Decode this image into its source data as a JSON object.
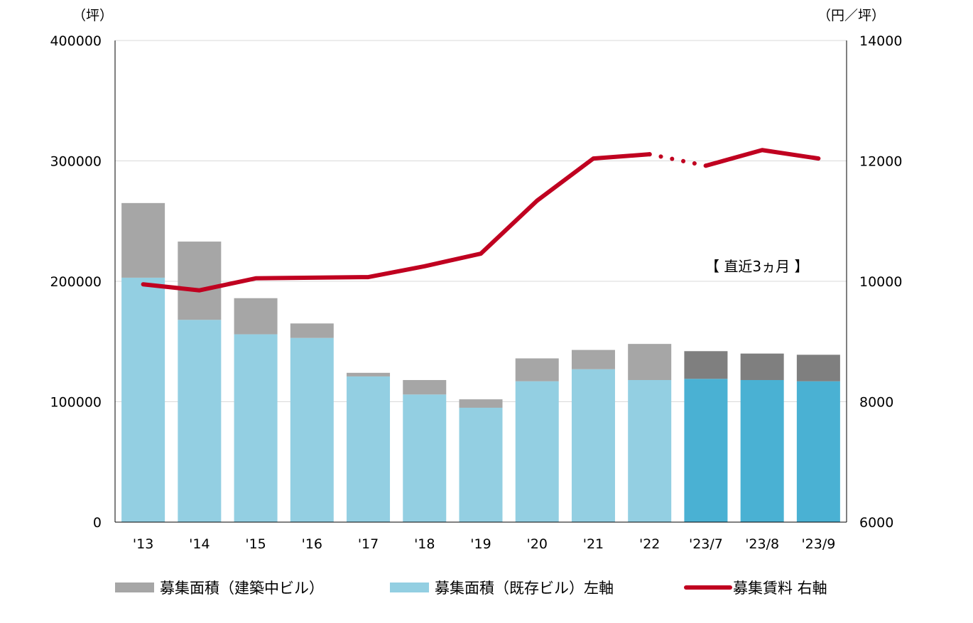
{
  "chart_data": {
    "type": "bar",
    "stacked": true,
    "categories": [
      "'13",
      "'14",
      "'15",
      "'16",
      "'17",
      "'18",
      "'19",
      "'20",
      "'21",
      "'22",
      "'23/7",
      "'23/8",
      "'23/9"
    ],
    "y_left": {
      "unit": "（坪）",
      "ylim": [
        0,
        400000
      ],
      "ticks": [
        "0",
        "100000",
        "200000",
        "300000",
        "400000"
      ]
    },
    "y_right": {
      "unit": "（円／坪）",
      "ylim": [
        6000,
        14000
      ],
      "ticks": [
        "6000",
        "8000",
        "10000",
        "12000",
        "14000"
      ]
    },
    "series": [
      {
        "name": "募集面積（既存ビル）左軸",
        "axis": "left",
        "kind": "bar",
        "color": "#93cfe2",
        "recent_color": "#4ab1d3",
        "values": [
          203000,
          168000,
          156000,
          153000,
          121000,
          106000,
          95000,
          117000,
          127000,
          118000,
          119000,
          118000,
          117000
        ]
      },
      {
        "name": "募集面積（建築中ビル）",
        "axis": "left",
        "kind": "bar",
        "color": "#a6a6a6",
        "recent_color": "#7f7f7f",
        "values": [
          62000,
          65000,
          30000,
          12000,
          3000,
          12000,
          7000,
          19000,
          16000,
          30000,
          23000,
          22000,
          22000
        ]
      },
      {
        "name": "募集賃料 右軸",
        "axis": "right",
        "kind": "line",
        "color": "#c00020",
        "values": [
          9950,
          9850,
          10050,
          10060,
          10070,
          10250,
          10460,
          11340,
          12040,
          12110,
          11920,
          12180,
          12040
        ],
        "dotted_between": [
          9,
          10
        ]
      }
    ],
    "recent_start_index": 10,
    "annotation": "【 直近3ヵ月 】",
    "grid": true,
    "legend_position": "bottom",
    "legend": [
      {
        "label": "募集面積（建築中ビル）",
        "color": "#a6a6a6",
        "kind": "bar"
      },
      {
        "label": "募集面積（既存ビル）左軸",
        "color": "#93cfe2",
        "kind": "bar"
      },
      {
        "label": "募集賃料 右軸",
        "color": "#c00020",
        "kind": "line"
      }
    ]
  }
}
